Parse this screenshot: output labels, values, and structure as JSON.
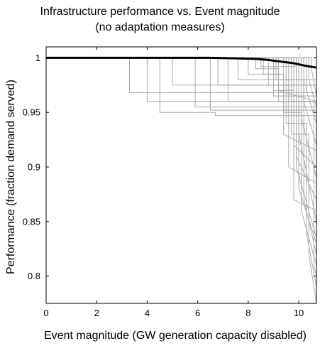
{
  "chart_data": {
    "type": "line",
    "title": "Infrastructure performance vs. Event magnitude",
    "subtitle": "(no adaptation measures)",
    "xlabel": "Event magnitude (GW generation capacity disabled)",
    "ylabel": "Performance (fraction demand served)",
    "xlim": [
      0,
      10.7
    ],
    "ylim": [
      0.775,
      1.01
    ],
    "xticks": [
      0,
      2,
      4,
      6,
      8,
      10
    ],
    "yticks": [
      0.8,
      0.85,
      0.9,
      0.95,
      1
    ],
    "xtick_labels": [
      "0",
      "2",
      "4",
      "6",
      "8",
      "10"
    ],
    "ytick_labels": [
      "0.8",
      "0.85",
      "0.9",
      "0.95",
      "1"
    ],
    "grid": false,
    "legend": "none",
    "colors": {
      "samples": "#aaaaaa",
      "mean": "#000000"
    },
    "series": [
      {
        "role": "mean",
        "x": [
          0,
          6.5,
          7.5,
          8.3,
          8.8,
          9.3,
          9.8,
          10.2,
          10.7
        ],
        "y": [
          1.0,
          1.0,
          0.9995,
          0.999,
          0.998,
          0.9965,
          0.995,
          0.993,
          0.991
        ]
      },
      {
        "role": "sample",
        "x": [
          0,
          3.3,
          3.3,
          10.7
        ],
        "y": [
          1.0,
          1.0,
          0.968,
          0.968
        ]
      },
      {
        "role": "sample",
        "x": [
          0,
          4.0,
          4.0,
          10.7
        ],
        "y": [
          1.0,
          1.0,
          0.96,
          0.96
        ]
      },
      {
        "role": "sample",
        "x": [
          0,
          4.5,
          4.5,
          6.7,
          6.7,
          10.7
        ],
        "y": [
          1.0,
          1.0,
          0.95,
          0.95,
          0.947,
          0.947
        ]
      },
      {
        "role": "sample",
        "x": [
          0,
          5.0,
          5.0,
          10.7
        ],
        "y": [
          1.0,
          1.0,
          0.975,
          0.975
        ]
      },
      {
        "role": "sample",
        "x": [
          0,
          5.9,
          5.9,
          10.7
        ],
        "y": [
          1.0,
          1.0,
          0.955,
          0.955
        ]
      },
      {
        "role": "sample",
        "x": [
          0,
          6.5,
          6.5,
          10.7
        ],
        "y": [
          1.0,
          1.0,
          0.952,
          0.952
        ]
      },
      {
        "role": "sample",
        "x": [
          0,
          6.8,
          6.8,
          10.7
        ],
        "y": [
          1.0,
          1.0,
          0.975,
          0.975
        ]
      },
      {
        "role": "sample",
        "x": [
          0,
          7.2,
          7.2,
          10.7
        ],
        "y": [
          1.0,
          1.0,
          0.96,
          0.96
        ]
      },
      {
        "role": "sample",
        "x": [
          0,
          7.6,
          7.6,
          10.7
        ],
        "y": [
          1.0,
          1.0,
          0.98,
          0.98
        ]
      },
      {
        "role": "sample",
        "x": [
          0,
          8.0,
          8.0,
          9.0,
          9.0,
          10.7
        ],
        "y": [
          1.0,
          1.0,
          0.985,
          0.985,
          0.965,
          0.965
        ]
      },
      {
        "role": "sample",
        "x": [
          0,
          8.3,
          8.3,
          9.2,
          9.2,
          10.7
        ],
        "y": [
          1.0,
          1.0,
          0.99,
          0.99,
          0.97,
          0.96
        ]
      },
      {
        "role": "sample",
        "x": [
          0,
          8.6,
          8.6,
          9.4,
          9.4,
          10.7
        ],
        "y": [
          1.0,
          1.0,
          0.985,
          0.985,
          0.93,
          0.915
        ]
      },
      {
        "role": "sample",
        "x": [
          0,
          8.8,
          8.8,
          9.6,
          9.6,
          10.7
        ],
        "y": [
          1.0,
          1.0,
          0.975,
          0.975,
          0.9,
          0.885
        ]
      },
      {
        "role": "sample",
        "x": [
          0,
          9.0,
          9.0,
          9.8,
          9.8,
          10.7
        ],
        "y": [
          1.0,
          1.0,
          0.97,
          0.97,
          0.87,
          0.86
        ]
      },
      {
        "role": "sample",
        "x": [
          0,
          9.2,
          9.2,
          10.0,
          10.0,
          10.7
        ],
        "y": [
          1.0,
          1.0,
          0.96,
          0.96,
          0.88,
          0.83
        ]
      },
      {
        "role": "sample",
        "x": [
          0,
          9.4,
          9.4,
          10.1,
          10.1,
          10.7
        ],
        "y": [
          1.0,
          1.0,
          0.95,
          0.95,
          0.86,
          0.81
        ]
      },
      {
        "role": "sample",
        "x": [
          0,
          9.5,
          9.5,
          10.3,
          10.3,
          10.7
        ],
        "y": [
          1.0,
          1.0,
          0.94,
          0.94,
          0.84,
          0.79
        ]
      },
      {
        "role": "sample",
        "x": [
          0,
          9.7,
          9.7,
          10.4,
          10.4,
          10.7
        ],
        "y": [
          1.0,
          1.0,
          0.93,
          0.93,
          0.82,
          0.775
        ]
      },
      {
        "role": "sample",
        "x": [
          0,
          9.8,
          9.8,
          10.7
        ],
        "y": [
          1.0,
          1.0,
          0.92,
          0.9
        ]
      },
      {
        "role": "sample",
        "x": [
          0,
          9.9,
          9.9,
          10.7
        ],
        "y": [
          1.0,
          1.0,
          0.91,
          0.87
        ]
      },
      {
        "role": "sample",
        "x": [
          0,
          10.0,
          10.0,
          10.7
        ],
        "y": [
          1.0,
          1.0,
          0.93,
          0.85
        ]
      },
      {
        "role": "sample",
        "x": [
          0,
          10.1,
          10.1,
          10.7
        ],
        "y": [
          1.0,
          1.0,
          0.945,
          0.89
        ]
      },
      {
        "role": "sample",
        "x": [
          0,
          10.2,
          10.2,
          10.7
        ],
        "y": [
          1.0,
          1.0,
          0.96,
          0.92
        ]
      },
      {
        "role": "sample",
        "x": [
          0,
          10.3,
          10.3,
          10.7
        ],
        "y": [
          1.0,
          1.0,
          0.97,
          0.94
        ]
      },
      {
        "role": "sample",
        "x": [
          0,
          10.4,
          10.4,
          10.7
        ],
        "y": [
          1.0,
          1.0,
          0.98,
          0.955
        ]
      },
      {
        "role": "sample",
        "x": [
          0,
          10.5,
          10.5,
          10.7
        ],
        "y": [
          1.0,
          1.0,
          0.99,
          0.965
        ]
      },
      {
        "role": "sample",
        "x": [
          0,
          8.5,
          8.5,
          9.9,
          9.9,
          10.7
        ],
        "y": [
          1.0,
          1.0,
          0.992,
          0.992,
          0.9,
          0.835
        ]
      },
      {
        "role": "sample",
        "x": [
          0,
          9.1,
          9.1,
          10.2,
          10.2,
          10.7
        ],
        "y": [
          1.0,
          1.0,
          0.98,
          0.98,
          0.87,
          0.82
        ]
      },
      {
        "role": "sample",
        "x": [
          0,
          9.6,
          9.6,
          10.6,
          10.6,
          10.7
        ],
        "y": [
          1.0,
          1.0,
          0.96,
          0.96,
          0.81,
          0.8
        ]
      }
    ]
  }
}
